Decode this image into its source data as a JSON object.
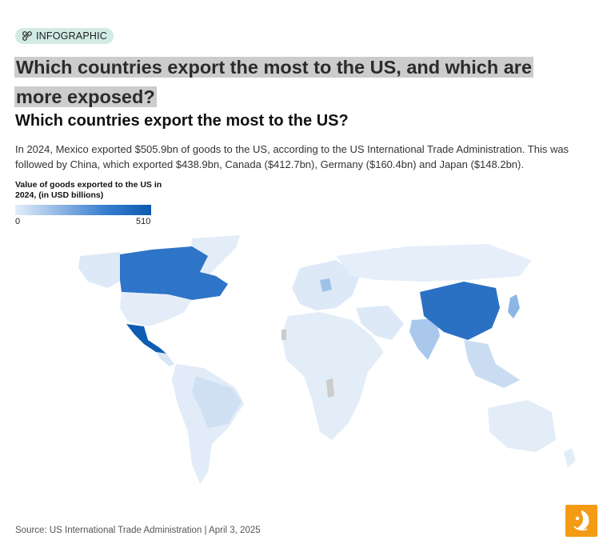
{
  "badge": {
    "label": "INFOGRAPHIC",
    "icon": "network-icon"
  },
  "headline": "Which countries export the most to the US, and which are more exposed?",
  "subtitle": "Which countries export the most to the US?",
  "description": "In 2024, Mexico exported $505.9bn of goods to the US, according to the US International Trade Administration. This was followed by China, which exported $438.9bn, Canada ($412.7bn), Germany ($160.4bn) and Japan ($148.2bn).",
  "legend": {
    "title": "Value of goods exported to the US in 2024, (in USD billions)",
    "min": "0",
    "max": "510",
    "color_low": "#e3edf8",
    "color_high": "#0a5bb0"
  },
  "chart_data": {
    "type": "choropleth",
    "unit": "USD billions",
    "range": [
      0,
      510
    ],
    "highlighted": [
      {
        "country": "Mexico",
        "value": 505.9
      },
      {
        "country": "China",
        "value": 438.9
      },
      {
        "country": "Canada",
        "value": 412.7
      },
      {
        "country": "Germany",
        "value": 160.4
      },
      {
        "country": "Japan",
        "value": 148.2
      }
    ],
    "colors": {
      "no_data": "#cccccc",
      "low": "#e3edf8",
      "high": "#0a5bb0"
    }
  },
  "source": "Source: US International Trade Administration | April 3, 2025",
  "logo": {
    "icon": "al-jazeera-logo-icon",
    "color": "#f49b16"
  }
}
